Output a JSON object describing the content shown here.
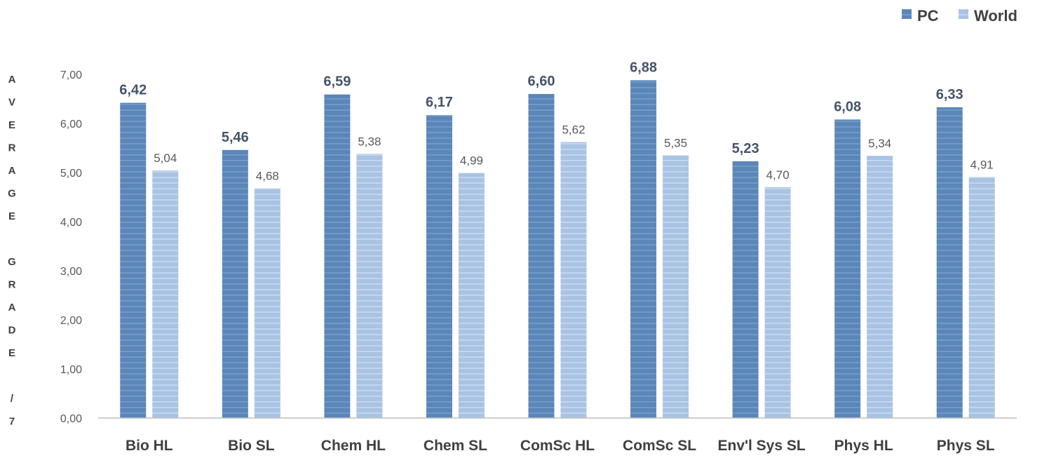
{
  "chart_data": {
    "type": "bar",
    "categories": [
      "Bio HL",
      "Bio SL",
      "Chem HL",
      "Chem SL",
      "ComSc HL",
      "ComSc SL",
      "Env'l Sys SL",
      "Phys HL",
      "Phys SL"
    ],
    "series": [
      {
        "name": "PC",
        "values": [
          6.42,
          5.46,
          6.59,
          6.17,
          6.6,
          6.88,
          5.23,
          6.08,
          6.33
        ],
        "labels": [
          "6,42",
          "5,46",
          "6,59",
          "6,17",
          "6,60",
          "6,88",
          "5,23",
          "6,08",
          "6,33"
        ],
        "color": "#5b86b8"
      },
      {
        "name": "World",
        "values": [
          5.04,
          4.68,
          5.38,
          4.99,
          5.62,
          5.35,
          4.7,
          5.34,
          4.91
        ],
        "labels": [
          "5,04",
          "4,68",
          "5,38",
          "4,99",
          "5,62",
          "5,35",
          "4,70",
          "5,34",
          "4,91"
        ],
        "color": "#a9c3e3"
      }
    ],
    "ylabel": "AVERAGE GRADE /7",
    "ylabel_lines": [
      "A",
      "V",
      "E",
      "R",
      "A",
      "G",
      "E",
      "",
      "G",
      "R",
      "A",
      "D",
      "E",
      "",
      "/",
      "7"
    ],
    "ylim": [
      0,
      7
    ],
    "yticks": [
      "0,00",
      "1,00",
      "2,00",
      "3,00",
      "4,00",
      "5,00",
      "6,00",
      "7,00"
    ],
    "legend_position": "top-right",
    "grid": false
  }
}
